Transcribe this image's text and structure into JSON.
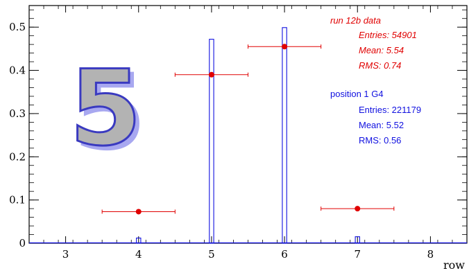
{
  "chart_data": {
    "type": "bar",
    "xlabel": "row",
    "ylabel": "",
    "xlim": [
      2.5,
      8.5
    ],
    "ylim": [
      0,
      0.55
    ],
    "x_ticks": [
      "3",
      "4",
      "5",
      "6",
      "7",
      "8"
    ],
    "y_ticks": [
      "0",
      "0.1",
      "0.2",
      "0.3",
      "0.4",
      "0.5"
    ],
    "big_label": "5",
    "histogram": {
      "bin_centers": [
        3,
        4,
        5,
        6,
        7,
        8
      ],
      "values": [
        0.0,
        0.012,
        0.472,
        0.499,
        0.015,
        0.0
      ],
      "bar_width": 0.06,
      "color": "#1010e0"
    },
    "points": {
      "x": [
        4,
        5,
        6,
        7
      ],
      "y": [
        0.073,
        0.39,
        0.455,
        0.08
      ],
      "xerr": [
        0.5,
        0.5,
        0.5,
        0.5
      ],
      "color": "#e00000"
    },
    "stats_data": {
      "title": "run 12b data",
      "entries": "Entries: 54901",
      "mean": "Mean: 5.54",
      "rms": "RMS: 0.74",
      "color": "#e00000"
    },
    "stats_sim": {
      "title": "position 1 G4",
      "entries": "Entries: 221179",
      "mean": "Mean: 5.52",
      "rms": "RMS: 0.56",
      "color": "#1010e0"
    }
  }
}
